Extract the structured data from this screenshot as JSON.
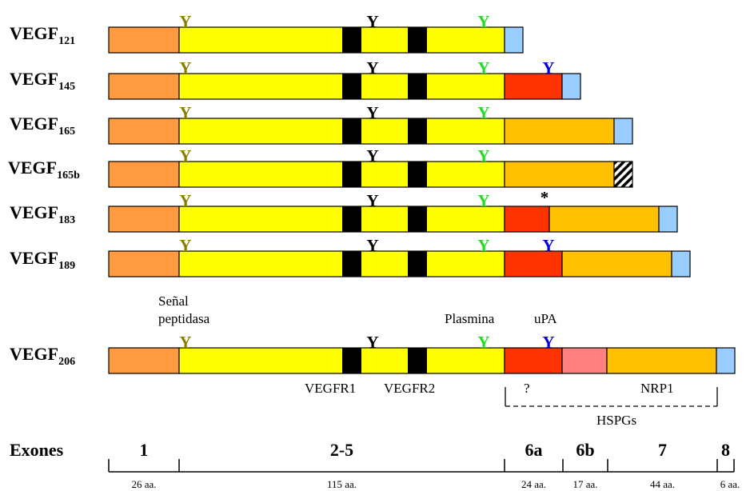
{
  "colors": {
    "signal": "#FF9A40",
    "core": "#FFFF00",
    "receptor": "#000000",
    "exon6a": "#FF3300",
    "exon6b": "#FF8080",
    "exon7": "#FFC000",
    "exon8": "#99CCFF",
    "y_olive": "#8B7D00",
    "y_black": "#000000",
    "y_green": "#22DD22",
    "y_blue": "#0000DD"
  },
  "symbols": {
    "y": "Y",
    "star": "*"
  },
  "isoforms": [
    {
      "base": "VEGF",
      "sub": "121",
      "segments": [
        "signal",
        "core",
        "exon8"
      ],
      "markers": [
        "olive",
        "black",
        "green"
      ]
    },
    {
      "base": "VEGF",
      "sub": "145",
      "segments": [
        "signal",
        "core",
        "exon6a",
        "exon8"
      ],
      "markers": [
        "olive",
        "black",
        "green",
        "blue"
      ]
    },
    {
      "base": "VEGF",
      "sub": "165",
      "segments": [
        "signal",
        "core",
        "exon7",
        "exon8"
      ],
      "markers": [
        "olive",
        "black",
        "green"
      ]
    },
    {
      "base": "VEGF",
      "sub": "165b",
      "segments": [
        "signal",
        "core",
        "exon7",
        "exon8b"
      ],
      "markers": [
        "olive",
        "black",
        "green"
      ]
    },
    {
      "base": "VEGF",
      "sub": "183",
      "segments": [
        "signal",
        "core",
        "exon6a_short",
        "exon7",
        "exon8"
      ],
      "markers": [
        "olive",
        "black",
        "green",
        "star"
      ]
    },
    {
      "base": "VEGF",
      "sub": "189",
      "segments": [
        "signal",
        "core",
        "exon6a",
        "exon7",
        "exon8"
      ],
      "markers": [
        "olive",
        "black",
        "green",
        "blue"
      ]
    },
    {
      "base": "VEGF",
      "sub": "206",
      "segments": [
        "signal",
        "core",
        "exon6a",
        "exon6b",
        "exon7",
        "exon8"
      ],
      "markers": [
        "olive",
        "black",
        "green",
        "blue"
      ]
    }
  ],
  "annotations": {
    "signal_line1": "Señal",
    "signal_line2": "peptidasa",
    "plasmin": "Plasmina",
    "upa": "uPA",
    "vegfr1": "VEGFR1",
    "vegfr2": "VEGFR2",
    "question": "?",
    "nrp1": "NRP1",
    "hspgs": "HSPGs"
  },
  "exons": {
    "title": "Exones",
    "items": [
      {
        "label": "1",
        "aa": "26 aa."
      },
      {
        "label": "2-5",
        "aa": "115 aa."
      },
      {
        "label": "6a",
        "aa": "24 aa."
      },
      {
        "label": "6b",
        "aa": "17 aa."
      },
      {
        "label": "7",
        "aa": "44 aa."
      },
      {
        "label": "8",
        "aa": "6 aa."
      }
    ]
  }
}
